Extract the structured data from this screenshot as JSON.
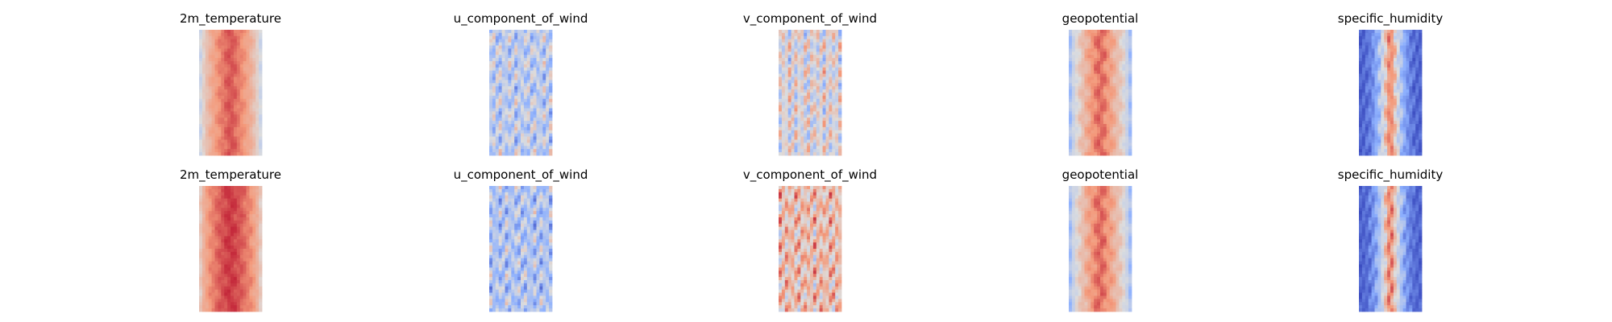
{
  "chart_data": {
    "type": "heatmap",
    "colormap": "coolwarm",
    "colors": {
      "cold": "#3b4cc0",
      "neutral": "#dddddd",
      "warm": "#b40426"
    },
    "grid": false,
    "axes_visible": false,
    "rows": [
      {
        "panels": [
          {
            "title": "2m_temperature"
          },
          {
            "title": "u_component_of_wind"
          },
          {
            "title": "v_component_of_wind"
          },
          {
            "title": "geopotential"
          },
          {
            "title": "specific_humidity"
          }
        ]
      },
      {
        "panels": [
          {
            "title": "2m_temperature"
          },
          {
            "title": "u_component_of_wind"
          },
          {
            "title": "v_component_of_wind"
          },
          {
            "title": "geopotential"
          },
          {
            "title": "specific_humidity"
          }
        ]
      }
    ]
  }
}
